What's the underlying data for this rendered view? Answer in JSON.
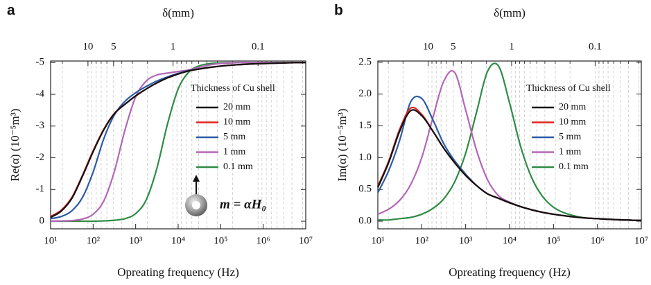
{
  "chart_data": [
    {
      "type": "line",
      "panel_label": "a",
      "x2label": "δ(mm)",
      "xlabel": "Opreating frequency (Hz)",
      "ylabel": "Re(α) (10⁻⁵m³)",
      "xscale": "log",
      "x2scale": "log",
      "xlim": [
        10,
        10000000
      ],
      "xticks": [
        {
          "value": 10,
          "label": "10¹"
        },
        {
          "value": 100,
          "label": "10²"
        },
        {
          "value": 1000,
          "label": "10³"
        },
        {
          "value": 10000,
          "label": "10⁴"
        },
        {
          "value": 100000,
          "label": "10⁵"
        },
        {
          "value": 1000000,
          "label": "10⁶"
        },
        {
          "value": 10000000,
          "label": "10⁷"
        }
      ],
      "x2lim": [
        27.5,
        0.0275
      ],
      "x2ticks": [
        10,
        5,
        1,
        0.1
      ],
      "x2minor": [
        20,
        9,
        8,
        7,
        6,
        4,
        3,
        2,
        0.9,
        0.8,
        0.7,
        0.6,
        0.5,
        0.4,
        0.3,
        0.2,
        0.09,
        0.08,
        0.07,
        0.06,
        0.05,
        0.04,
        0.03
      ],
      "grid": true,
      "ylim": [
        0.24,
        -5.05
      ],
      "yticks": [
        0,
        -1,
        -2,
        -3,
        -4,
        -5
      ],
      "legend_title": "Thickness of Cu shell",
      "legend": "upper right",
      "annotation": "m = αH₀",
      "x": [
        10,
        17.8,
        31.6,
        56.2,
        100,
        178,
        316,
        562,
        1000,
        1778,
        3162,
        5623,
        10000,
        17783,
        31623,
        56234,
        100000,
        177828,
        316228,
        562341,
        1000000,
        1778279,
        3162278,
        5623413,
        10000000
      ],
      "series": [
        {
          "name": "20 mm",
          "color": "#111111",
          "values": [
            -0.12,
            -0.32,
            -0.72,
            -1.42,
            -2.19,
            -2.88,
            -3.39,
            -3.69,
            -3.95,
            -4.17,
            -4.36,
            -4.52,
            -4.64,
            -4.74,
            -4.8,
            -4.85,
            -4.89,
            -4.92,
            -4.94,
            -4.96,
            -4.97,
            -4.98,
            -4.99,
            -5,
            -5
          ]
        },
        {
          "name": "10 mm",
          "color": "#e3231f",
          "values": [
            -0.15,
            -0.35,
            -0.75,
            -1.45,
            -2.22,
            -2.9,
            -3.4,
            -3.69,
            -3.95,
            -4.17,
            -4.36,
            -4.52,
            -4.64,
            -4.74,
            -4.8,
            -4.85,
            -4.89,
            -4.92,
            -4.94,
            -4.96,
            -4.97,
            -4.98,
            -4.99,
            -5,
            -5
          ]
        },
        {
          "name": "5 mm",
          "color": "#2b5ba8",
          "values": [
            -0.08,
            -0.15,
            -0.33,
            -0.75,
            -1.55,
            -2.6,
            -3.35,
            -3.78,
            -4.05,
            -4.25,
            -4.42,
            -4.55,
            -4.66,
            -4.75,
            -4.8,
            -4.85,
            -4.89,
            -4.92,
            -4.94,
            -4.96,
            -4.97,
            -4.98,
            -4.99,
            -5,
            -5
          ]
        },
        {
          "name": "1 mm",
          "color": "#b466b8",
          "values": [
            0,
            -0.01,
            -0.02,
            -0.07,
            -0.22,
            -0.64,
            -1.57,
            -2.88,
            -3.92,
            -4.42,
            -4.61,
            -4.67,
            -4.72,
            -4.77,
            -4.85,
            -4.93,
            -4.97,
            -4.99,
            -5,
            -5,
            -5,
            -5,
            -5,
            -5,
            -5
          ]
        },
        {
          "name": "0.1 mm",
          "color": "#2e8b45",
          "values": [
            0,
            0,
            0,
            0,
            0,
            -0.01,
            -0.03,
            -0.08,
            -0.24,
            -0.68,
            -1.67,
            -3.07,
            -4.17,
            -4.7,
            -4.9,
            -4.97,
            -4.99,
            -5,
            -5,
            -5,
            -5,
            -5,
            -5,
            -5,
            -5
          ]
        }
      ]
    },
    {
      "type": "line",
      "panel_label": "b",
      "x2label": "δ(mm)",
      "xlabel": "Opreating frequency (Hz)",
      "ylabel": "Im(α) (10⁻⁵m³)",
      "xscale": "log",
      "x2scale": "log",
      "xlim": [
        10,
        10000000
      ],
      "xticks": [
        {
          "value": 10,
          "label": "10¹"
        },
        {
          "value": 100,
          "label": "10²"
        },
        {
          "value": 1000,
          "label": "10³"
        },
        {
          "value": 10000,
          "label": "10⁴"
        },
        {
          "value": 100000,
          "label": "10⁵"
        },
        {
          "value": 1000000,
          "label": "10⁶"
        },
        {
          "value": 10000000,
          "label": "10⁷"
        }
      ],
      "x2lim": [
        40,
        0.028
      ],
      "x2ticks": [
        10,
        5,
        1,
        0.1
      ],
      "x2minor": [
        30,
        20,
        9,
        8,
        7,
        6,
        4,
        3,
        2,
        0.9,
        0.8,
        0.7,
        0.6,
        0.5,
        0.4,
        0.3,
        0.2,
        0.09,
        0.08,
        0.07,
        0.06,
        0.05,
        0.04,
        0.03
      ],
      "grid": true,
      "ylim": [
        -0.12,
        2.52
      ],
      "yticks": [
        {
          "value": 0,
          "label": "0.0"
        },
        0.5,
        {
          "value": 1,
          "label": "1.0"
        },
        1.5,
        {
          "value": 2,
          "label": "2.0"
        },
        2.5
      ],
      "legend_title": "Thickness of Cu shell",
      "legend": "upper right",
      "x": [
        10,
        17.8,
        31.6,
        56.2,
        100,
        178,
        316,
        562,
        1000,
        1778,
        3162,
        5623,
        10000,
        17783,
        31623,
        56234,
        100000,
        177828,
        316228,
        562341,
        1000000,
        1778279,
        3162278,
        5623413,
        10000000
      ],
      "series": [
        {
          "name": "20 mm",
          "color": "#111111",
          "values": [
            0.53,
            0.93,
            1.42,
            1.74,
            1.66,
            1.42,
            1.15,
            0.92,
            0.72,
            0.56,
            0.43,
            0.36,
            0.29,
            0.23,
            0.18,
            0.14,
            0.11,
            0.085,
            0.065,
            0.05,
            0.04,
            0.03,
            0.022,
            0.016,
            0.012
          ]
        },
        {
          "name": "10 mm",
          "color": "#e3231f",
          "values": [
            0.55,
            0.95,
            1.45,
            1.78,
            1.68,
            1.42,
            1.15,
            0.92,
            0.72,
            0.56,
            0.43,
            0.36,
            0.29,
            0.23,
            0.18,
            0.14,
            0.11,
            0.085,
            0.065,
            0.05,
            0.04,
            0.03,
            0.022,
            0.016,
            0.012
          ]
        },
        {
          "name": "5 mm",
          "color": "#2b5ba8",
          "values": [
            0.45,
            0.8,
            1.28,
            1.88,
            1.93,
            1.6,
            1.22,
            0.95,
            0.74,
            0.56,
            0.43,
            0.36,
            0.29,
            0.23,
            0.18,
            0.14,
            0.11,
            0.085,
            0.065,
            0.05,
            0.04,
            0.03,
            0.022,
            0.016,
            0.012
          ]
        },
        {
          "name": "1 mm",
          "color": "#b466b8",
          "values": [
            0.11,
            0.19,
            0.33,
            0.58,
            1.0,
            1.62,
            2.2,
            2.34,
            1.75,
            1.11,
            0.65,
            0.4,
            0.3,
            0.23,
            0.18,
            0.14,
            0.11,
            0.085,
            0.065,
            0.05,
            0.04,
            0.03,
            0.022,
            0.016,
            0.012
          ]
        },
        {
          "name": "0.1 mm",
          "color": "#2e8b45",
          "values": [
            0.02,
            0.02,
            0.04,
            0.06,
            0.11,
            0.2,
            0.35,
            0.62,
            1.07,
            1.72,
            2.36,
            2.44,
            1.86,
            1.18,
            0.69,
            0.39,
            0.22,
            0.13,
            0.08,
            0.05,
            0.04,
            0.03,
            0.022,
            0.016,
            0.012
          ]
        }
      ]
    }
  ]
}
